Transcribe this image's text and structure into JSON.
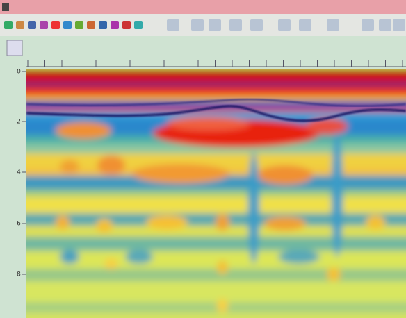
{
  "depth_axis": {
    "labels": [
      "0",
      "2",
      "4",
      "6",
      "8"
    ]
  }
}
